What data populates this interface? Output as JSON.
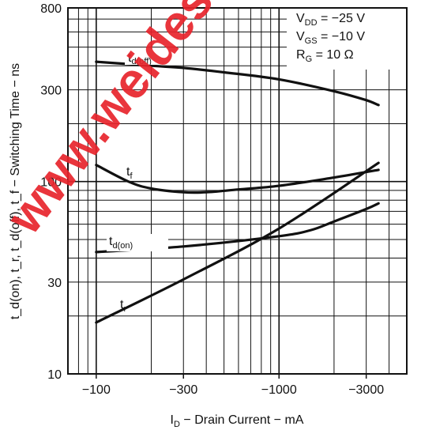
{
  "chart_data": {
    "type": "line",
    "x_scale": "log",
    "y_scale": "log",
    "xlim": [
      70,
      5000
    ],
    "ylim": [
      10,
      800
    ],
    "x_tick_labels": [
      "−100",
      "−300",
      "−1000",
      "−3000"
    ],
    "x_tick_values": [
      100,
      300,
      1000,
      3000
    ],
    "y_tick_labels": [
      "10",
      "30",
      "100",
      "300",
      "800"
    ],
    "y_tick_values": [
      10,
      30,
      100,
      300,
      800
    ],
    "xlabel": {
      "main": "I",
      "sub": "D",
      "rest": " − Drain Current − mA"
    },
    "ylabel": "t_d(on), t_r, t_d(off), t_f − Switching Time − ns",
    "conditions": [
      {
        "sym": "V",
        "sub": "DD",
        "rest": " = −25 V"
      },
      {
        "sym": "V",
        "sub": "GS",
        "rest": " = −10 V"
      },
      {
        "sym": "R",
        "sub": "G",
        "rest": " = 10 Ω"
      }
    ],
    "grid": true,
    "series": [
      {
        "name": "t_d(off)",
        "label_main": "t",
        "label_sub": "d(off)",
        "x": [
          100,
          200,
          300,
          500,
          1000,
          2000,
          3000,
          3500
        ],
        "y": [
          420,
          400,
          390,
          370,
          340,
          295,
          265,
          250
        ]
      },
      {
        "name": "t_f",
        "label_main": "t",
        "label_sub": "f",
        "x": [
          100,
          150,
          200,
          300,
          400,
          600,
          1000,
          2000,
          3500
        ],
        "y": [
          122,
          100,
          92,
          88,
          88,
          91,
          95,
          105,
          115
        ]
      },
      {
        "name": "t_d(on)",
        "label_main": "t",
        "label_sub": "d(on)",
        "x": [
          100,
          300,
          1000,
          1500,
          2000,
          3000,
          3500
        ],
        "y": [
          43,
          46,
          52,
          56,
          62,
          72,
          77
        ]
      },
      {
        "name": "t_r",
        "label_main": "t",
        "label_sub": "r",
        "x": [
          100,
          300,
          1000,
          3500
        ],
        "y": [
          18.5,
          31,
          57,
          125
        ]
      }
    ]
  },
  "watermark": {
    "text": "www.weidesign.com",
    "color": "#e8242c"
  }
}
